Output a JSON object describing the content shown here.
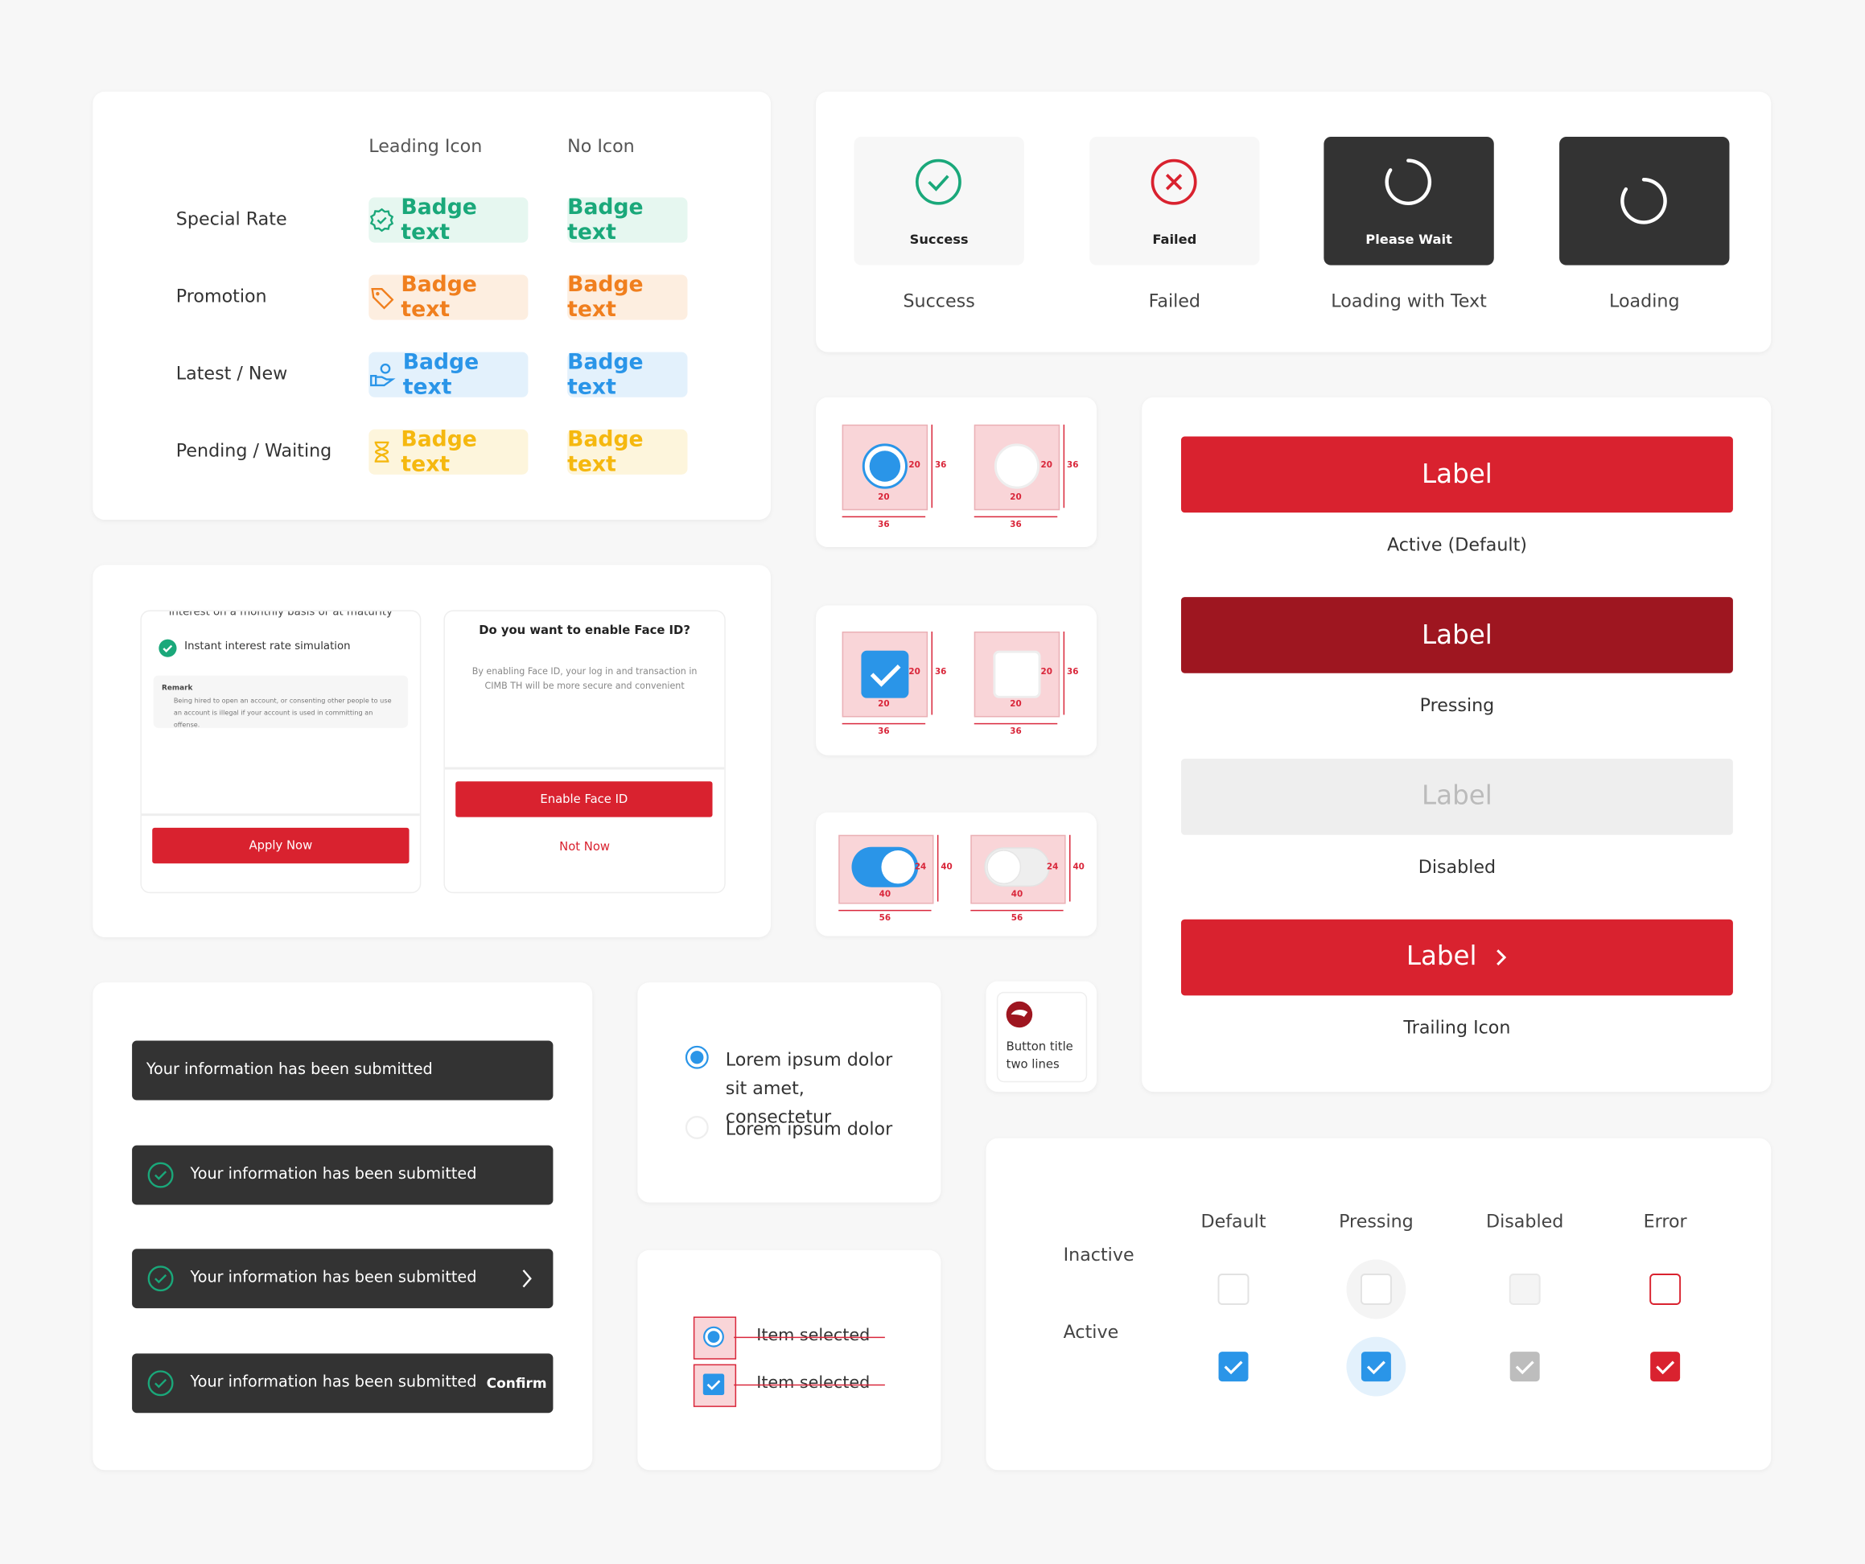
{
  "badges": {
    "headers": [
      "Leading Icon",
      "No Icon"
    ],
    "rows": [
      {
        "label": "Special Rate",
        "leading": "Badge text",
        "plain": "Badge text"
      },
      {
        "label": "Promotion",
        "leading": "Badge text",
        "plain": "Badge text"
      },
      {
        "label": "Latest / New",
        "leading": "Badge text",
        "plain": "Badge text"
      },
      {
        "label": "Pending / Waiting",
        "leading": "Badge text",
        "plain": "Badge text"
      }
    ]
  },
  "status": {
    "items": [
      {
        "title": "Success",
        "caption": "Success"
      },
      {
        "title": "Failed",
        "caption": "Failed"
      },
      {
        "title": "Please Wait",
        "caption": "Loading with Text"
      },
      {
        "caption": "Loading"
      }
    ]
  },
  "specs": {
    "small": "20",
    "large": "36",
    "toggle_w": "40",
    "toggle_h": "24",
    "toggle_outer_h": "40",
    "toggle_outer_w": "56"
  },
  "buttons": [
    {
      "label": "Label",
      "caption": "Active (Default)"
    },
    {
      "label": "Label",
      "caption": "Pressing"
    },
    {
      "label": "Label",
      "caption": "Disabled"
    },
    {
      "label": "Label",
      "caption": "Trailing Icon"
    }
  ],
  "cards": {
    "apply": {
      "top": "interest on a monthly basis or at maturity",
      "check": "Instant interest rate simulation",
      "remark_title": "Remark",
      "remark_text": "Being hired to open an account, or consenting other people to use an account is illegal if your account is used in committing an offense.",
      "button": "Apply Now"
    },
    "faceid": {
      "title": "Do you want to enable Face ID?",
      "body": "By enabling Face ID, your log in and transaction in CIMB TH will be more secure and convenient",
      "primary": "Enable Face ID",
      "secondary": "Not Now"
    }
  },
  "toasts": [
    {
      "text": "Your information has been submitted"
    },
    {
      "text": "Your information has been submitted"
    },
    {
      "text": "Your information has been submitted"
    },
    {
      "text": "Your information has been submitted",
      "action": "Confirm"
    }
  ],
  "radios": [
    "Lorem ipsum dolor sit amet, consectetur",
    "Lorem ipsum dolor"
  ],
  "list": [
    "Item selected",
    "Item selected"
  ],
  "tile": "Button title two lines",
  "checkboxes": {
    "columns": [
      "Default",
      "Pressing",
      "Disabled",
      "Error"
    ],
    "rows": [
      "Inactive",
      "Active"
    ]
  }
}
